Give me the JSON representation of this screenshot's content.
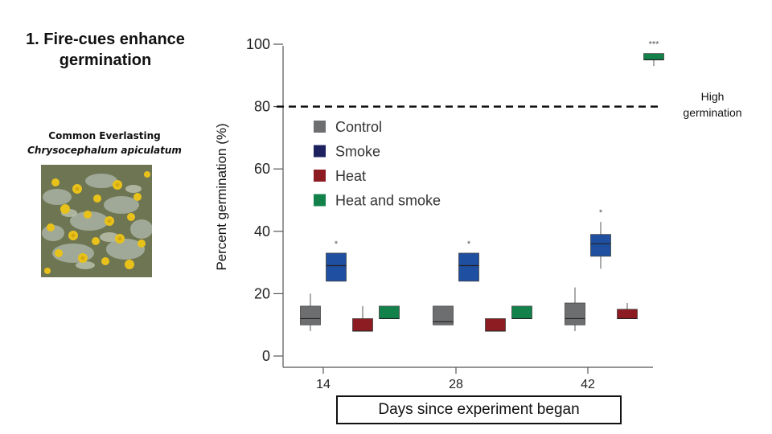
{
  "slide": {
    "title": "1. Fire-cues enhance germination",
    "species_common": "Common Everlasting",
    "species_latin": "Chrysocephalum apiculatum",
    "reference_line_label": "High germination"
  },
  "chart_data": {
    "type": "box",
    "xlabel": "Days since experiment began",
    "ylabel": "Percent germination (%)",
    "ylim": [
      0,
      100
    ],
    "yticks": [
      0,
      20,
      40,
      60,
      80,
      100
    ],
    "categories": [
      "14",
      "28",
      "42"
    ],
    "reference_line": {
      "y": 80,
      "style": "dashed"
    },
    "legend": {
      "placement": "top-left",
      "entries": [
        "Control",
        "Smoke",
        "Heat",
        "Heat and smoke"
      ]
    },
    "colors": {
      "Control": "#6d6e70",
      "Smoke": "#1f4fa0",
      "Heat": "#8c1c22",
      "Heat and smoke": "#12824a",
      "legend_smoke": "#1d2160"
    },
    "series": [
      {
        "name": "Control",
        "boxes": [
          {
            "day": "14",
            "low": 8,
            "q1": 10,
            "median": 12,
            "q3": 16,
            "high": 20
          },
          {
            "day": "28",
            "low": 10,
            "q1": 10,
            "median": 11,
            "q3": 16,
            "high": 16
          },
          {
            "day": "42",
            "low": 8,
            "q1": 10,
            "median": 12,
            "q3": 17,
            "high": 22
          }
        ]
      },
      {
        "name": "Smoke",
        "boxes": [
          {
            "day": "14",
            "low": 24,
            "q1": 24,
            "median": 29,
            "q3": 33,
            "high": 33,
            "sig": "*"
          },
          {
            "day": "28",
            "low": 24,
            "q1": 24,
            "median": 29,
            "q3": 33,
            "high": 33,
            "sig": "*"
          },
          {
            "day": "42",
            "low": 28,
            "q1": 32,
            "median": 36,
            "q3": 39,
            "high": 43,
            "sig": "*"
          }
        ]
      },
      {
        "name": "Heat",
        "boxes": [
          {
            "day": "14",
            "low": 8,
            "q1": 8,
            "median": 8,
            "q3": 12,
            "high": 16
          },
          {
            "day": "28",
            "low": 8,
            "q1": 8,
            "median": 8,
            "q3": 12,
            "high": 12
          },
          {
            "day": "42",
            "low": 12,
            "q1": 12,
            "median": 12,
            "q3": 15,
            "high": 17
          }
        ]
      },
      {
        "name": "Heat and smoke",
        "boxes": [
          {
            "day": "14",
            "low": 12,
            "q1": 12,
            "median": 12,
            "q3": 16,
            "high": 16
          },
          {
            "day": "28",
            "low": 12,
            "q1": 12,
            "median": 12,
            "q3": 16,
            "high": 16
          },
          {
            "day": "42",
            "low": 93,
            "q1": 95,
            "median": 95,
            "q3": 97,
            "high": 97,
            "sig": "***"
          }
        ]
      }
    ]
  }
}
